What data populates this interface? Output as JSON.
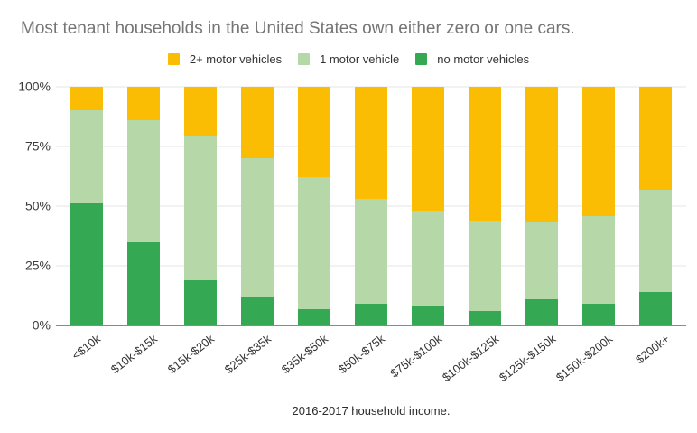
{
  "chart_data": {
    "type": "bar",
    "stacked": true,
    "title": "Most tenant households in the United States own either zero or one cars.",
    "xlabel": "2016-2017 household income.",
    "ylabel": "",
    "ylim": [
      0,
      100
    ],
    "yticks": [
      "0%",
      "25%",
      "50%",
      "75%",
      "100%"
    ],
    "grid": true,
    "legend_position": "top",
    "categories": [
      "<$10k",
      "$10k-$15k",
      "$15k-$20k",
      "$25k-$35k",
      "$35k-$50k",
      "$50k-$75k",
      "$75k-$100k",
      "$100k-$125k",
      "$125k-$150k",
      "$150k-$200k",
      "$200k+"
    ],
    "series": [
      {
        "key": "2plus",
        "name": "2+ motor vehicles",
        "color": "#FBBC04",
        "values": [
          10,
          14,
          21,
          30,
          38,
          47,
          52,
          56,
          57,
          54,
          43
        ]
      },
      {
        "key": "one",
        "name": "1 motor vehicle",
        "color": "#B6D7A8",
        "values": [
          39,
          51,
          60,
          58,
          55,
          44,
          40,
          38,
          32,
          37,
          43
        ]
      },
      {
        "key": "none",
        "name": "no motor vehicles",
        "color": "#34A853",
        "values": [
          51,
          35,
          19,
          12,
          7,
          9,
          8,
          6,
          11,
          9,
          14
        ]
      }
    ],
    "colors": {
      "title_text": "#757575",
      "axis_text": "#333333",
      "gridline": "#e6e6e6",
      "baseline": "#8a8a8a",
      "background": "#ffffff"
    }
  }
}
